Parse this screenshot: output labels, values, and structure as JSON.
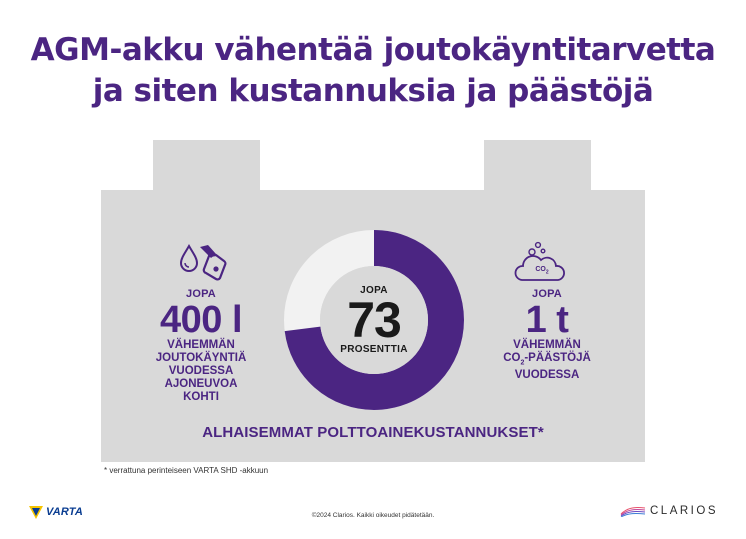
{
  "title": {
    "line1": "AGM-akku vähentää joutokäyntitarvetta",
    "line2": "ja siten kustannuksia ja päästöjä"
  },
  "center": {
    "prefix": "JOPA",
    "value": "73",
    "suffix": "PROSENTTIA",
    "percent": 73
  },
  "left": {
    "prefix": "JOPA",
    "value": "400 l",
    "lines": [
      "VÄHEMMÄN",
      "JOUTOKÄYNTIÄ",
      "VUODESSA",
      "AJONEUVOA",
      "KOHTI"
    ]
  },
  "right": {
    "prefix": "JOPA",
    "value": "1 t",
    "line1": "VÄHEMMÄN",
    "line2_a": "CO",
    "line2_sub": "2",
    "line2_b": "-PÄÄSTÖJÄ",
    "line3": "VUODESSA",
    "icon_label": "CO",
    "icon_label_sub": "2"
  },
  "bottom": "ALHAISEMMAT POLTTOAINEKUSTANNUKSET*",
  "footnote": "* verrattuna perinteiseen VARTA SHD -akkuun",
  "copyright": "©2024 Clarios. Kaikki oikeudet pidätetään.",
  "logos": {
    "varta": "VARTA",
    "clarios": "CLARIOS"
  },
  "colors": {
    "purple": "#4b2582",
    "gray": "#d9d9d9",
    "light": "#f2f2f2"
  },
  "icons": {
    "fuel": "fuel-pump-icon",
    "cloud": "cloud-icon"
  }
}
